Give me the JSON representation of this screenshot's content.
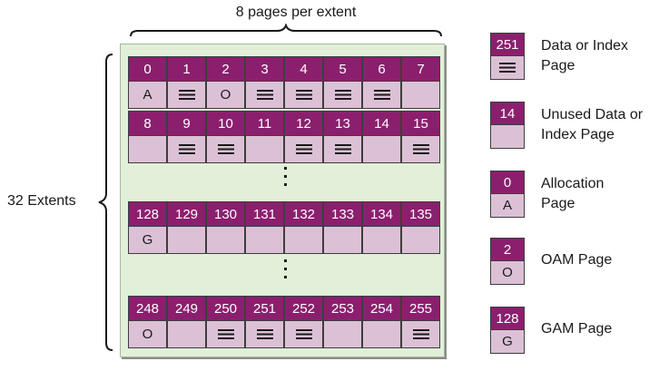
{
  "header": {
    "pages_per_extent_label": "8 pages per extent"
  },
  "side": {
    "extents_label": "32 Extents"
  },
  "rows": [
    {
      "pages": [
        "0",
        "1",
        "2",
        "3",
        "4",
        "5",
        "6",
        "7"
      ],
      "types": [
        "A",
        "data",
        "O",
        "data",
        "data",
        "data",
        "data",
        "unused"
      ]
    },
    {
      "pages": [
        "8",
        "9",
        "10",
        "11",
        "12",
        "13",
        "14",
        "15"
      ],
      "types": [
        "unused",
        "data",
        "data",
        "unused",
        "data",
        "data",
        "unused",
        "data"
      ]
    },
    {
      "pages": [
        "128",
        "129",
        "130",
        "131",
        "132",
        "133",
        "134",
        "135"
      ],
      "types": [
        "G",
        "unused",
        "unused",
        "unused",
        "unused",
        "unused",
        "unused",
        "unused"
      ]
    },
    {
      "pages": [
        "248",
        "249",
        "250",
        "251",
        "252",
        "253",
        "254",
        "255"
      ],
      "types": [
        "O",
        "unused",
        "data",
        "data",
        "data",
        "unused",
        "unused",
        "data"
      ]
    }
  ],
  "legend": [
    {
      "page": "251",
      "marker": "data",
      "label_line1": "Data or Index",
      "label_line2": "Page"
    },
    {
      "page": "14",
      "marker": "unused",
      "label_line1": "Unused Data or",
      "label_line2": "Index Page"
    },
    {
      "page": "0",
      "marker": "A",
      "label_line1": "Allocation",
      "label_line2": "Page"
    },
    {
      "page": "2",
      "marker": "O",
      "label_line1": "OAM Page",
      "label_line2": ""
    },
    {
      "page": "128",
      "marker": "G",
      "label_line1": "GAM Page",
      "label_line2": ""
    }
  ],
  "colors": {
    "page_header": "#8b1f6e",
    "page_body": "#dcc1d6",
    "panel": "#e2efd9"
  }
}
